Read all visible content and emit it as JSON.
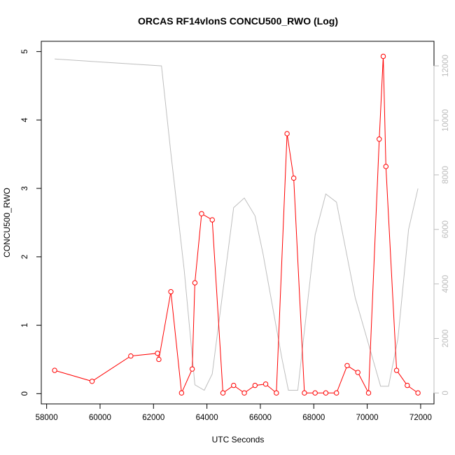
{
  "chart_data": {
    "type": "line",
    "title": "ORCAS RF14vlonS CONCU500_RWO (Log)",
    "xlabel": "UTC Seconds",
    "ylabel": "CONCU500_RWO",
    "xlim": [
      57800,
      72500
    ],
    "ylim": [
      -0.15,
      5.15
    ],
    "y2lim": [
      -400,
      12900
    ],
    "x_ticks": [
      58000,
      60000,
      62000,
      64000,
      66000,
      68000,
      70000,
      72000
    ],
    "y_ticks": [
      0,
      1,
      2,
      3,
      4,
      5
    ],
    "y2_ticks": [
      0,
      2000,
      4000,
      6000,
      8000,
      10000,
      12000
    ],
    "grid": false,
    "series": [
      {
        "color": "#ff0000",
        "axis": "left",
        "style": "line+circles",
        "x": [
          58300,
          59700,
          61150,
          62150,
          62200,
          62650,
          63050,
          63450,
          63550,
          63800,
          64200,
          64600,
          65000,
          65400,
          65800,
          66200,
          66600,
          67000,
          67250,
          67650,
          68050,
          68450,
          68850,
          69250,
          69650,
          70050,
          70450,
          70600,
          70700,
          71100,
          71500,
          71900
        ],
        "values": [
          0.34,
          0.18,
          0.55,
          0.59,
          0.5,
          1.49,
          0.01,
          0.36,
          1.62,
          2.63,
          2.54,
          0.01,
          0.12,
          0.01,
          0.12,
          0.14,
          0.01,
          3.8,
          3.15,
          0.01,
          0.01,
          0.01,
          0.01,
          0.41,
          0.31,
          0.01,
          3.72,
          4.93,
          3.32,
          0.34,
          0.12,
          0.01
        ]
      },
      {
        "color": "#bebebe",
        "axis": "right",
        "style": "line",
        "x": [
          58300,
          62300,
          62650,
          63150,
          63550,
          63900,
          64200,
          65000,
          65400,
          65800,
          66100,
          66800,
          67050,
          67400,
          68050,
          68450,
          68850,
          69550,
          70500,
          70800,
          71150,
          71550,
          71900
        ],
        "values": [
          12250,
          12000,
          8800,
          4500,
          300,
          100,
          700,
          6800,
          7150,
          6500,
          5100,
          1300,
          100,
          100,
          5800,
          7300,
          7000,
          3500,
          250,
          250,
          2000,
          6000,
          7500
        ]
      }
    ]
  }
}
